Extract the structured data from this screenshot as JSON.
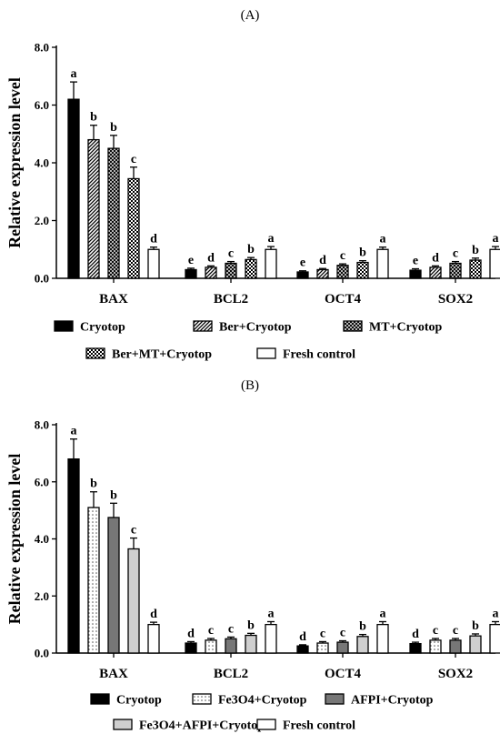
{
  "chart_data": [
    {
      "type": "bar",
      "panel_label": "(A)",
      "ylabel": "Relative expression level",
      "ylim": [
        0,
        8
      ],
      "y_ticks": [
        "0.0",
        "2.0",
        "4.0",
        "6.0",
        "8.0"
      ],
      "categories": [
        "BAX",
        "BCL2",
        "OCT4",
        "SOX2"
      ],
      "series": [
        {
          "name": "Cryotop",
          "pattern": "solid-black",
          "values": [
            6.2,
            0.3,
            0.22,
            0.28
          ],
          "errors": [
            0.6,
            0.05,
            0.04,
            0.05
          ],
          "letters": [
            "a",
            "e",
            "e",
            "e"
          ]
        },
        {
          "name": "Ber+Cryotop",
          "pattern": "diagonal-hatch",
          "values": [
            4.8,
            0.38,
            0.3,
            0.38
          ],
          "errors": [
            0.5,
            0.05,
            0.04,
            0.05
          ],
          "letters": [
            "b",
            "d",
            "d",
            "d"
          ]
        },
        {
          "name": "MT+Cryotop",
          "pattern": "crosshatch",
          "values": [
            4.5,
            0.52,
            0.45,
            0.52
          ],
          "errors": [
            0.45,
            0.06,
            0.05,
            0.06
          ],
          "letters": [
            "b",
            "c",
            "c",
            "c"
          ]
        },
        {
          "name": "Ber+MT+Cryotop",
          "pattern": "dots",
          "values": [
            3.45,
            0.65,
            0.55,
            0.63
          ],
          "errors": [
            0.4,
            0.07,
            0.06,
            0.07
          ],
          "letters": [
            "c",
            "b",
            "b",
            "b"
          ]
        },
        {
          "name": "Fresh control",
          "pattern": "white",
          "values": [
            1.0,
            1.0,
            1.0,
            1.0
          ],
          "errors": [
            0.08,
            0.1,
            0.08,
            0.1
          ],
          "letters": [
            "d",
            "a",
            "a",
            "a"
          ]
        }
      ],
      "legend_position": "bottom"
    },
    {
      "type": "bar",
      "panel_label": "(B)",
      "ylabel": "Relative expression level",
      "ylim": [
        0,
        8
      ],
      "y_ticks": [
        "0.0",
        "2.0",
        "4.0",
        "6.0",
        "8.0"
      ],
      "categories": [
        "BAX",
        "BCL2",
        "OCT4",
        "SOX2"
      ],
      "series": [
        {
          "name": "Cryotop",
          "pattern": "solid-black",
          "values": [
            6.8,
            0.35,
            0.25,
            0.33
          ],
          "errors": [
            0.7,
            0.05,
            0.04,
            0.05
          ],
          "letters": [
            "a",
            "d",
            "d",
            "d"
          ]
        },
        {
          "name": "Fe3O4+Cryotop",
          "pattern": "white-dots",
          "values": [
            5.1,
            0.45,
            0.35,
            0.45
          ],
          "errors": [
            0.55,
            0.06,
            0.05,
            0.06
          ],
          "letters": [
            "b",
            "c",
            "c",
            "c"
          ]
        },
        {
          "name": "AFPI+Cryotop",
          "pattern": "dark-gray",
          "values": [
            4.75,
            0.5,
            0.38,
            0.45
          ],
          "errors": [
            0.5,
            0.06,
            0.05,
            0.06
          ],
          "letters": [
            "b",
            "c",
            "c",
            "c"
          ]
        },
        {
          "name": "Fe3O4+AFPI+Cryotop",
          "pattern": "light-gray",
          "values": [
            3.65,
            0.62,
            0.58,
            0.6
          ],
          "errors": [
            0.38,
            0.07,
            0.07,
            0.07
          ],
          "letters": [
            "c",
            "b",
            "b",
            "b"
          ]
        },
        {
          "name": "Fresh control",
          "pattern": "white",
          "values": [
            1.0,
            1.0,
            1.0,
            1.0
          ],
          "errors": [
            0.08,
            0.1,
            0.1,
            0.1
          ],
          "letters": [
            "d",
            "a",
            "a",
            "a"
          ]
        }
      ],
      "legend_position": "bottom"
    }
  ]
}
